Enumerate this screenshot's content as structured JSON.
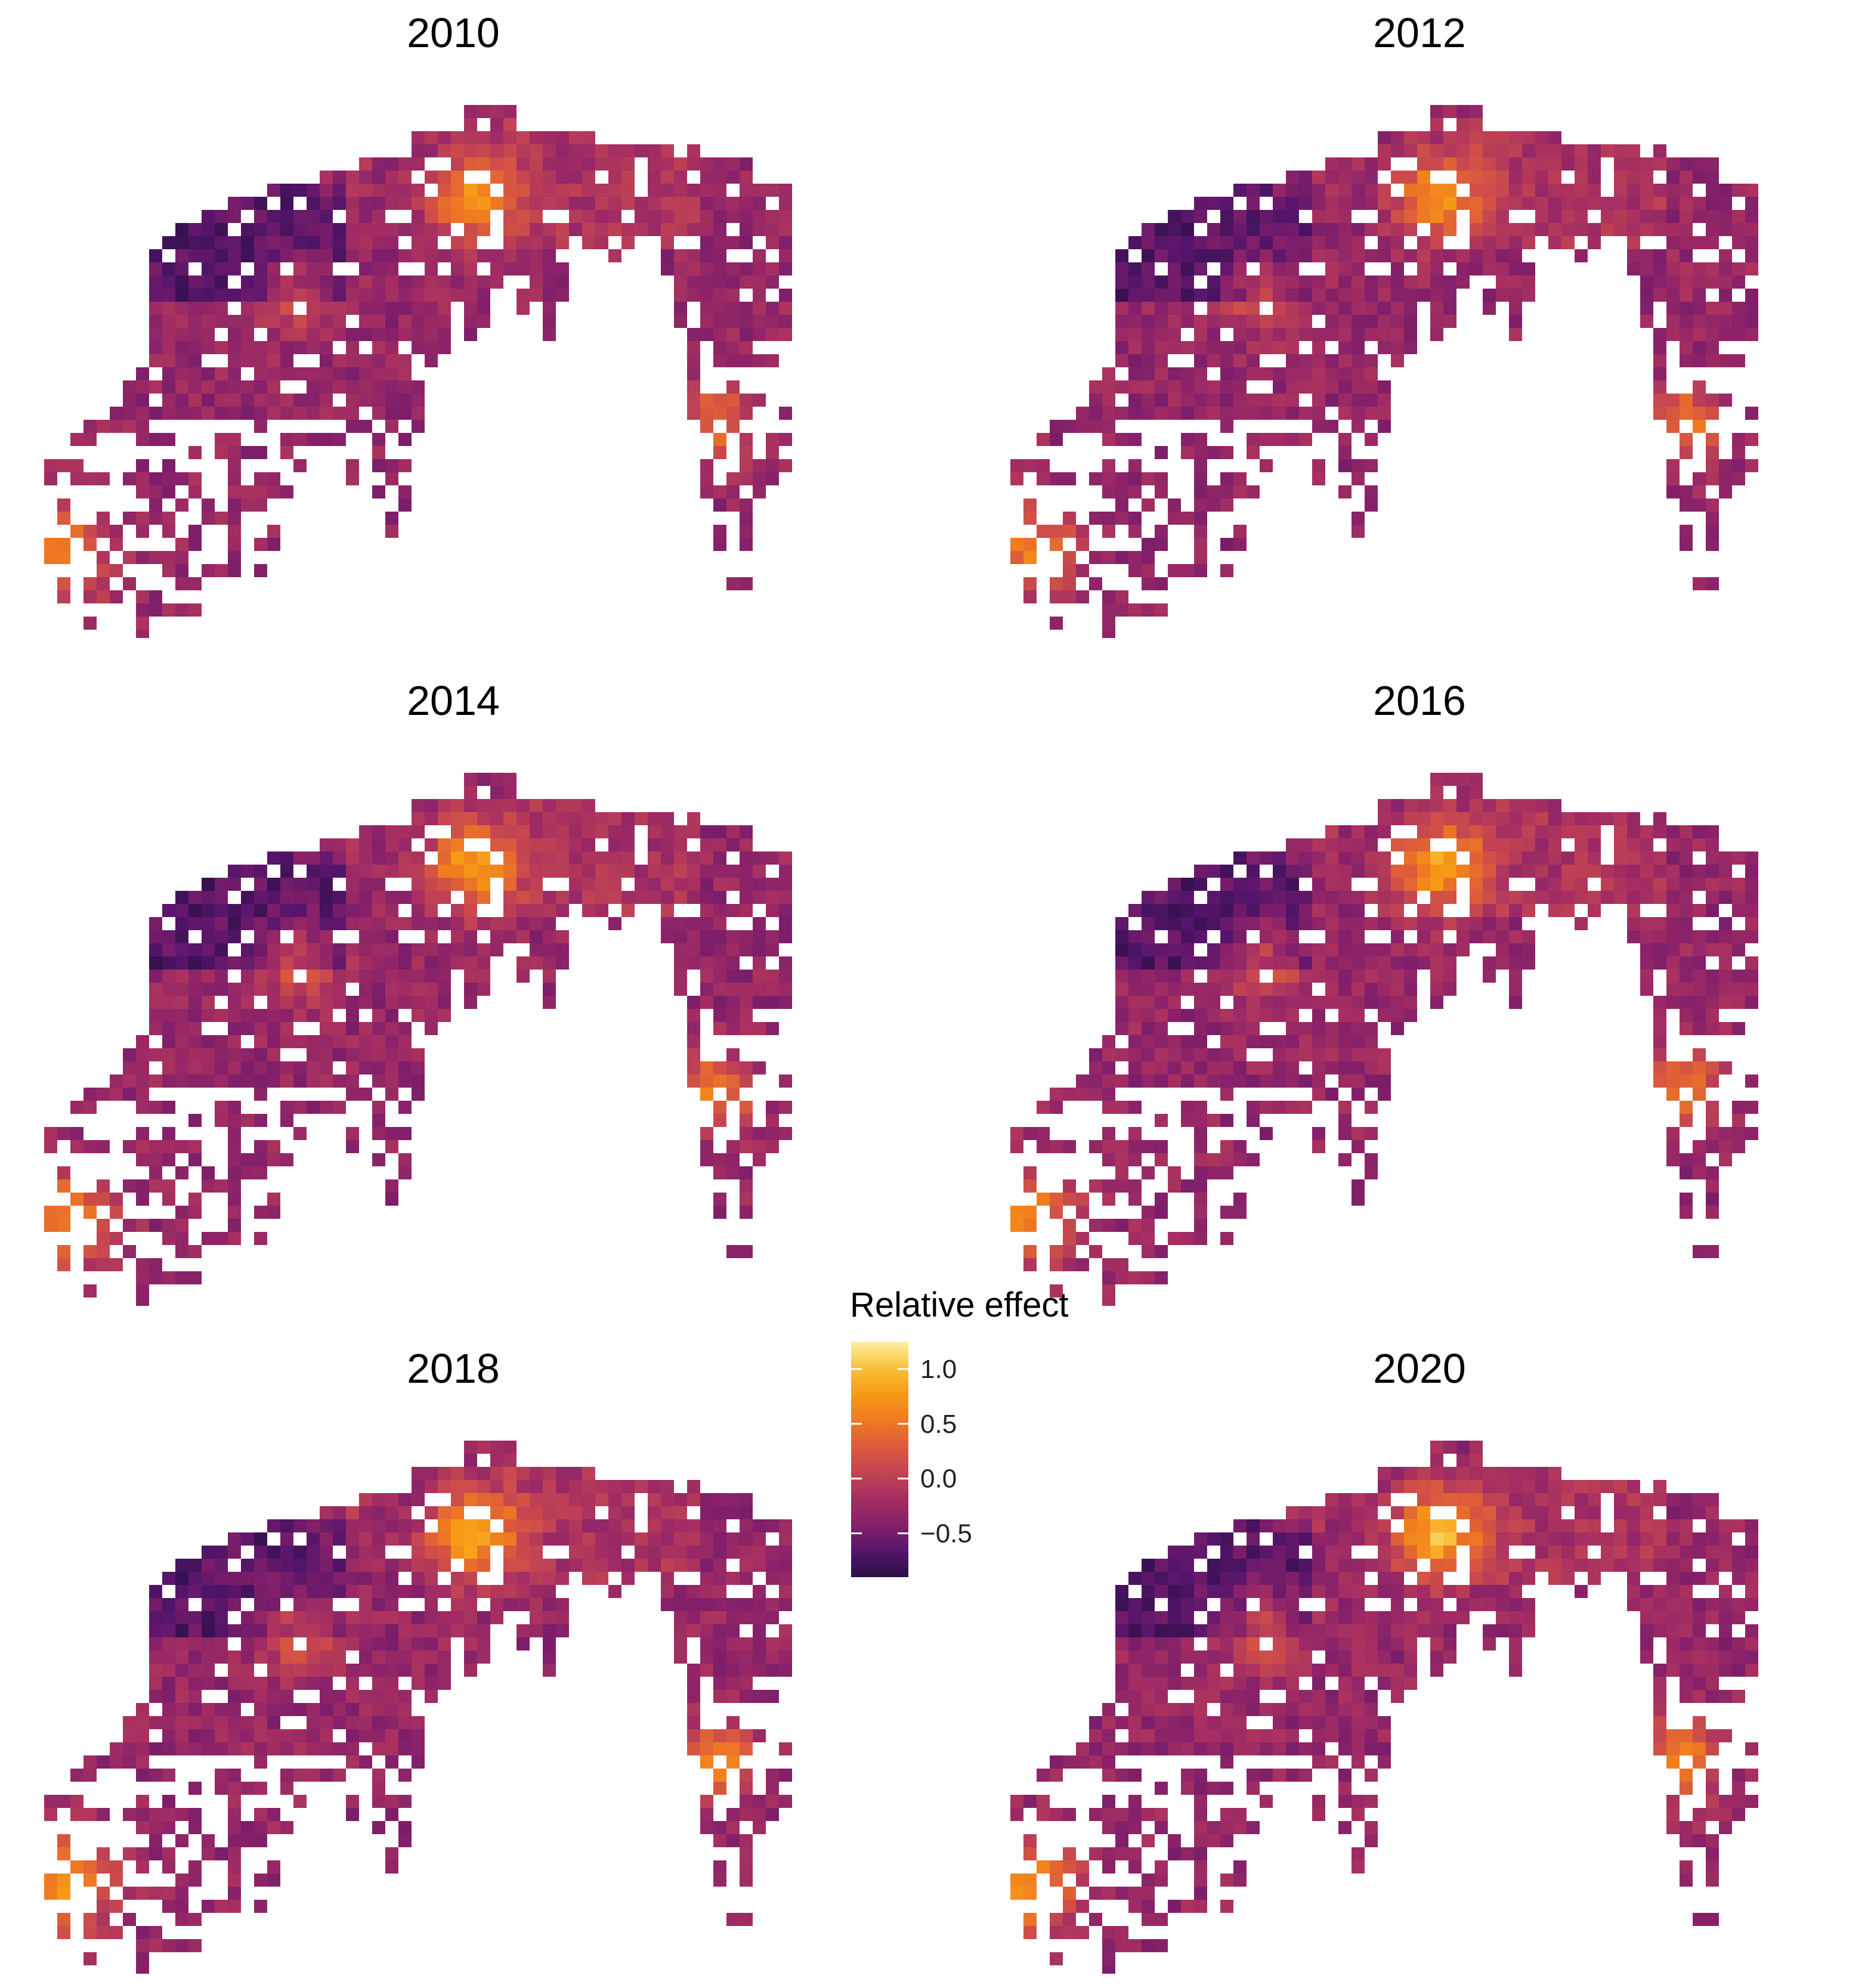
{
  "chart_data": {
    "type": "heatmap",
    "panels": [
      "2010",
      "2012",
      "2014",
      "2016",
      "2018",
      "2020"
    ],
    "colorscale": {
      "title": "Relative effect",
      "name": "inferno",
      "range": [
        -0.9,
        1.25
      ],
      "ticks": [
        -0.5,
        0.0,
        0.5,
        1.0
      ],
      "tick_labels": [
        "−0.5",
        "0.0",
        "0.5",
        "1.0"
      ],
      "colors": [
        "#2a0f46",
        "#56156b",
        "#84206a",
        "#a42e62",
        "#c34452",
        "#dc5b3c",
        "#ef7a22",
        "#f69a16",
        "#f9c13a",
        "#fdf0a6"
      ]
    },
    "grid_on": false,
    "legend_placement": "center"
  }
}
